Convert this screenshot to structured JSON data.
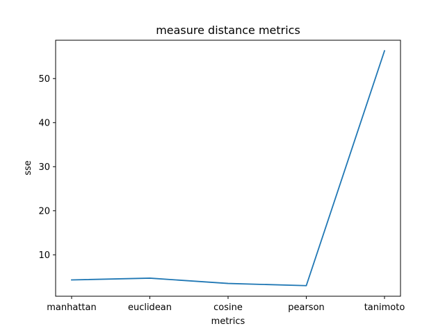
{
  "chart_data": {
    "type": "line",
    "title": "measure distance metrics",
    "xlabel": "metrics",
    "ylabel": "sse",
    "categories": [
      "manhattan",
      "euclidean",
      "cosine",
      "pearson",
      "tanimoto"
    ],
    "series": [
      {
        "values": [
          4.3,
          4.7,
          3.5,
          3.0,
          56.3
        ],
        "color": "#1f77b4"
      }
    ],
    "ylim": [
      0.6,
      58.7
    ],
    "yticks": [
      10,
      20,
      30,
      40,
      50
    ],
    "grid": false,
    "legend": false
  }
}
